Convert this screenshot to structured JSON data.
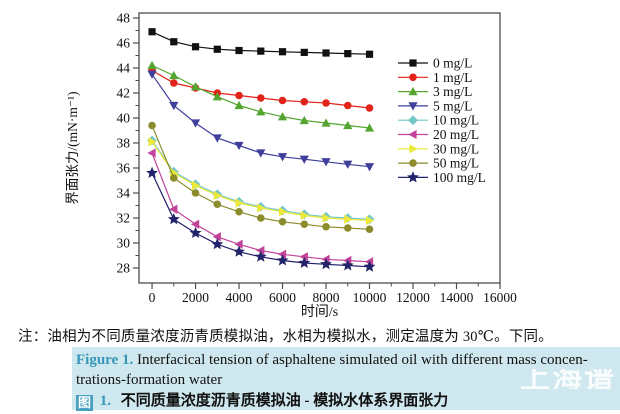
{
  "chart_data": {
    "type": "line",
    "title": "",
    "xlabel": "时间/s",
    "ylabel": "界面张力/(mN·m⁻¹)",
    "xlim": [
      -600,
      16000
    ],
    "ylim": [
      26.8,
      48.4
    ],
    "xticks": [
      0,
      2000,
      4000,
      6000,
      8000,
      10000,
      12000,
      14000,
      16000
    ],
    "yticks": [
      28,
      30,
      32,
      34,
      36,
      38,
      40,
      42,
      44,
      46,
      48
    ],
    "grid": false,
    "legend_position": "right",
    "x": [
      0,
      1000,
      2000,
      3000,
      4000,
      5000,
      6000,
      7000,
      8000,
      9000,
      10000
    ],
    "series": [
      {
        "name": "0 mg/L",
        "marker": "square",
        "color": "#111111",
        "values": [
          46.9,
          46.1,
          45.7,
          45.5,
          45.4,
          45.35,
          45.3,
          45.25,
          45.2,
          45.15,
          45.1
        ]
      },
      {
        "name": "1 mg/L",
        "marker": "circle",
        "color": "#e2231a",
        "values": [
          43.8,
          42.8,
          42.4,
          42.0,
          41.8,
          41.6,
          41.4,
          41.3,
          41.2,
          41.0,
          40.8
        ]
      },
      {
        "name": "3 mg/L",
        "marker": "triangle-up",
        "color": "#53a52f",
        "values": [
          44.2,
          43.4,
          42.5,
          41.7,
          41.0,
          40.5,
          40.1,
          39.8,
          39.6,
          39.4,
          39.2
        ]
      },
      {
        "name": "5 mg/L",
        "marker": "triangle-down",
        "color": "#3f3f9c",
        "values": [
          43.5,
          41.0,
          39.6,
          38.4,
          37.8,
          37.2,
          36.9,
          36.7,
          36.5,
          36.3,
          36.1
        ]
      },
      {
        "name": "10 mg/L",
        "marker": "diamond",
        "color": "#74c7c7",
        "values": [
          38.2,
          35.7,
          34.7,
          33.9,
          33.3,
          32.9,
          32.6,
          32.3,
          32.1,
          32.0,
          31.9
        ]
      },
      {
        "name": "20 mg/L",
        "marker": "triangle-left",
        "color": "#c2439a",
        "values": [
          37.2,
          32.7,
          31.5,
          30.5,
          29.9,
          29.4,
          29.1,
          28.9,
          28.7,
          28.6,
          28.5
        ]
      },
      {
        "name": "30 mg/L",
        "marker": "triangle-right",
        "color": "#ece93a",
        "values": [
          38.1,
          35.6,
          34.6,
          33.8,
          33.2,
          32.8,
          32.5,
          32.2,
          32.0,
          31.9,
          31.8
        ]
      },
      {
        "name": "50 mg/L",
        "marker": "circle",
        "color": "#8c8c2d",
        "values": [
          39.4,
          35.2,
          34.0,
          33.1,
          32.5,
          32.0,
          31.7,
          31.5,
          31.3,
          31.2,
          31.1
        ]
      },
      {
        "name": "100 mg/L",
        "marker": "star",
        "color": "#23236b",
        "values": [
          35.6,
          31.9,
          30.8,
          29.9,
          29.3,
          28.9,
          28.6,
          28.4,
          28.3,
          28.2,
          28.1
        ]
      }
    ]
  },
  "note": "注：油相为不同质量浓度沥青质模拟油，水相为模拟水，测定温度为 30℃。下同。",
  "caption": {
    "en_label": "Figure 1.",
    "en_line1": "Interfacical tension of asphaltene simulated oil with different mass concen-",
    "en_line2": "trations-formation water",
    "zh_label": "图",
    "zh_number": "1.",
    "zh_text": "不同质量浓度沥青质模拟油 - 模拟水体系界面张力",
    "highlight_color": "#cfe7ee",
    "accent_color": "#3798b8"
  },
  "watermark": "上海谱"
}
